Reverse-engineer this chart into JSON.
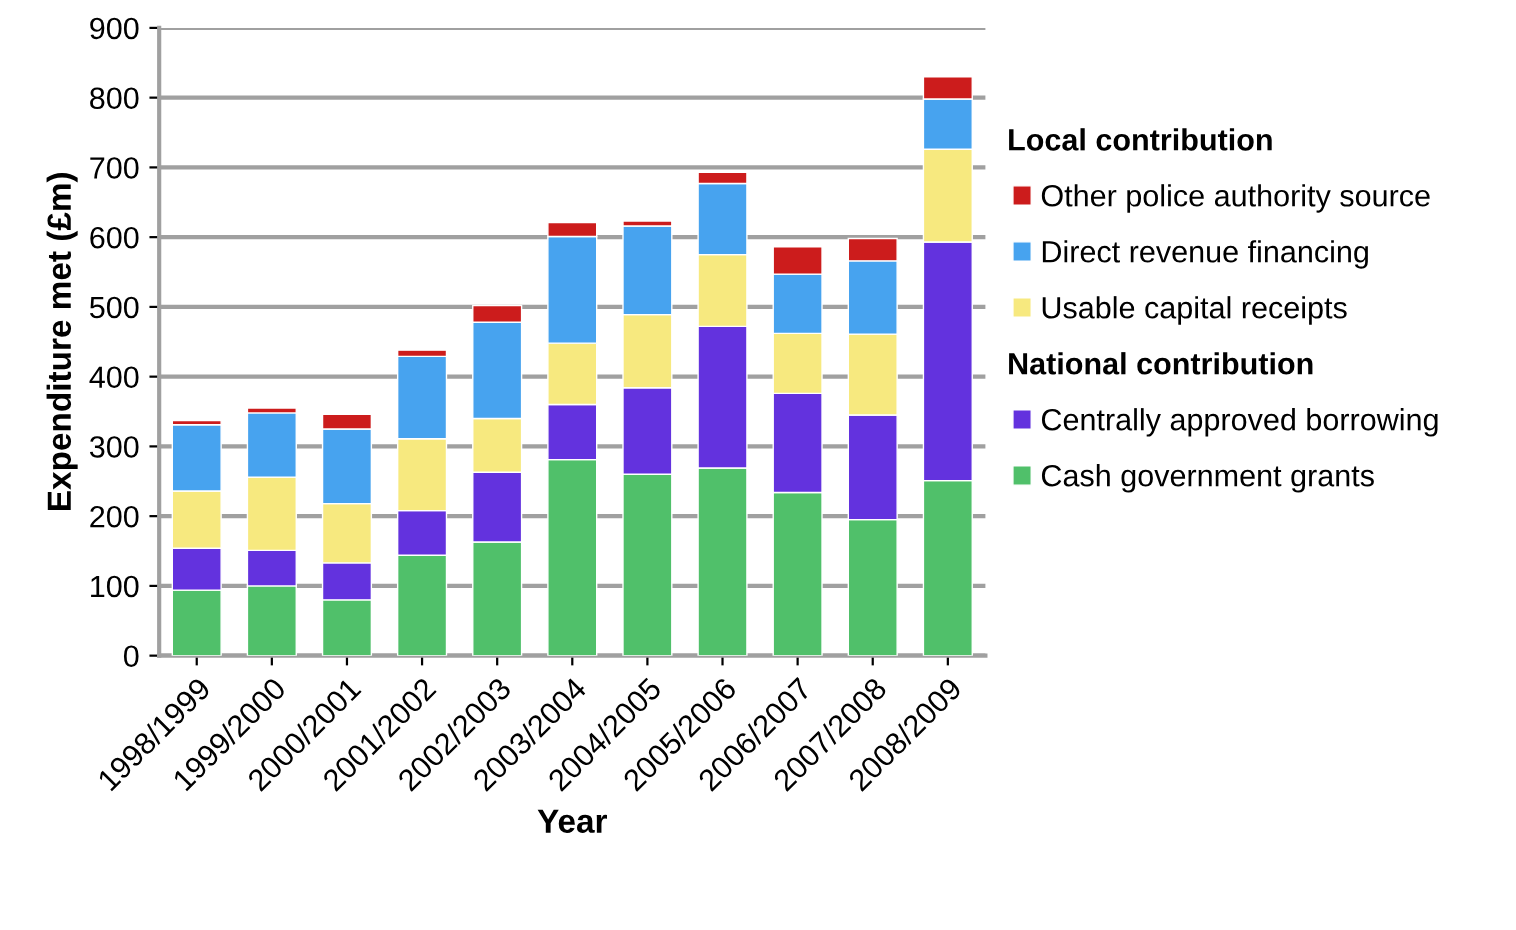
{
  "chart_data": {
    "type": "bar",
    "stacked": true,
    "xlabel": "Year",
    "ylabel": "Expenditure met (£m)",
    "categories": [
      "1998/1999",
      "1999/2000",
      "2000/2001",
      "2001/2002",
      "2002/2003",
      "2003/2004",
      "2004/2005",
      "2005/2006",
      "2006/2007",
      "2007/2008",
      "2008/2009"
    ],
    "series": [
      {
        "name": "Cash government grants",
        "color": "#50c06a",
        "values": [
          94,
          100,
          80,
          144,
          163,
          281,
          260,
          269,
          234,
          195,
          251
        ]
      },
      {
        "name": "Centrally approved borrowing",
        "color": "#6332de",
        "values": [
          60,
          51,
          53,
          64,
          100,
          79,
          124,
          203,
          142,
          150,
          342
        ]
      },
      {
        "name": "Usable capital receipts",
        "color": "#f7e97f",
        "values": [
          82,
          105,
          85,
          103,
          77,
          88,
          105,
          103,
          86,
          116,
          133
        ]
      },
      {
        "name": "Direct revenue financing",
        "color": "#47a3ef",
        "values": [
          95,
          92,
          107,
          118,
          138,
          153,
          127,
          102,
          85,
          105,
          72
        ]
      },
      {
        "name": "Other police authority source",
        "color": "#cc1c1c",
        "values": [
          6,
          7,
          21,
          9,
          24,
          20,
          7,
          16,
          39,
          32,
          32
        ]
      }
    ],
    "annotations": [
      "Local contribution",
      "National contribution"
    ],
    "ylim": [
      0,
      900
    ],
    "yticks": [
      0,
      100,
      200,
      300,
      400,
      500,
      600,
      700,
      800,
      900
    ],
    "grid": "y",
    "legend": "right"
  }
}
